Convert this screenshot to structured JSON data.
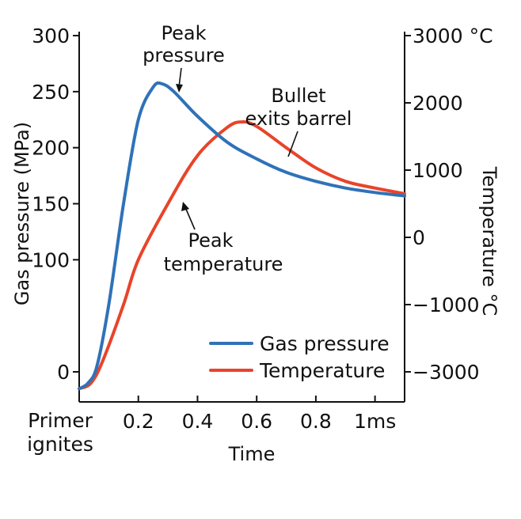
{
  "chart_data": {
    "type": "line",
    "xlabel": "Time",
    "ylabel_left": "Gas pressure (MPa)",
    "ylabel_right": "Temperature °C",
    "x_tick_labels": [
      {
        "x": 0.2,
        "label": "0.2"
      },
      {
        "x": 0.4,
        "label": "0.4"
      },
      {
        "x": 0.6,
        "label": "0.6"
      },
      {
        "x": 0.8,
        "label": "0.8"
      },
      {
        "x": 1.0,
        "label": "1ms"
      }
    ],
    "x_origin_label": [
      "Primer",
      "ignites"
    ],
    "xlim": [
      0,
      1.1
    ],
    "ylim_left": [
      -20,
      300
    ],
    "y_ticks_left": [
      0,
      50,
      100,
      150,
      200,
      250,
      300
    ],
    "y_ticks_left_labels": [
      "0",
      "100",
      "150",
      "200",
      "250",
      "300"
    ],
    "y_ticks_left_values": [
      0,
      100,
      150,
      200,
      250,
      300
    ],
    "y_ticks_right": [
      {
        "value": 3000,
        "label": "3000 °C"
      },
      {
        "value": 2000,
        "label": "2000"
      },
      {
        "value": 1000,
        "label": "1000"
      },
      {
        "value": 0,
        "label": "0"
      },
      {
        "value": -1000,
        "label": "−1000"
      },
      {
        "value": -3000,
        "label": "−3000"
      }
    ],
    "grid": false,
    "legend_position": "bottom-right",
    "series": [
      {
        "name": "Gas pressure",
        "color": "#2f72b8",
        "points": [
          [
            0.0,
            -15
          ],
          [
            0.03,
            -10
          ],
          [
            0.06,
            5
          ],
          [
            0.1,
            60
          ],
          [
            0.15,
            150
          ],
          [
            0.2,
            225
          ],
          [
            0.25,
            254
          ],
          [
            0.28,
            257
          ],
          [
            0.32,
            250
          ],
          [
            0.4,
            228
          ],
          [
            0.5,
            205
          ],
          [
            0.6,
            190
          ],
          [
            0.7,
            178
          ],
          [
            0.8,
            170
          ],
          [
            0.9,
            164
          ],
          [
            1.0,
            160
          ],
          [
            1.1,
            157
          ]
        ]
      },
      {
        "name": "Temperature",
        "color": "#e8442a",
        "points": [
          [
            0.0,
            -15
          ],
          [
            0.04,
            -10
          ],
          [
            0.08,
            10
          ],
          [
            0.15,
            60
          ],
          [
            0.2,
            100
          ],
          [
            0.3,
            150
          ],
          [
            0.4,
            193
          ],
          [
            0.5,
            218
          ],
          [
            0.55,
            223
          ],
          [
            0.6,
            219
          ],
          [
            0.7,
            200
          ],
          [
            0.8,
            182
          ],
          [
            0.9,
            170
          ],
          [
            1.0,
            164
          ],
          [
            1.1,
            159
          ]
        ]
      }
    ],
    "annotations": [
      {
        "id": "peak-pressure",
        "lines": [
          "Peak",
          "pressure"
        ]
      },
      {
        "id": "bullet-exits",
        "lines": [
          "Bullet",
          "exits barrel"
        ]
      },
      {
        "id": "peak-temperature",
        "lines": [
          "Peak",
          "temperature"
        ]
      }
    ]
  }
}
